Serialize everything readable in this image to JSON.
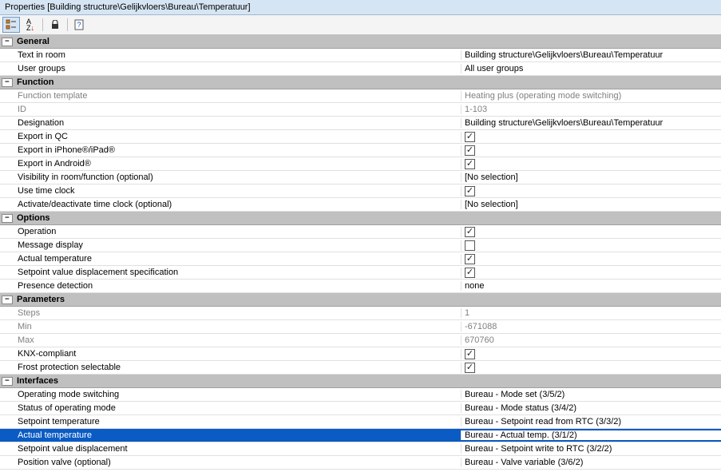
{
  "title": "Properties [Building structure\\Gelijkvloers\\Bureau\\Temperatuur]",
  "toolbar": {
    "categorized_tip": "Categorized",
    "alpha_tip": "Alphabetical",
    "lock_tip": "Lock",
    "help_tip": "Help"
  },
  "sections": {
    "general": {
      "header": "General",
      "rows": [
        {
          "label": "Text in room",
          "value": "Building structure\\Gelijkvloers\\Bureau\\Temperatuur",
          "type": "text"
        },
        {
          "label": "User groups",
          "value": "All user groups",
          "type": "text"
        }
      ]
    },
    "function": {
      "header": "Function",
      "rows": [
        {
          "label": "Function template",
          "value": "Heating plus (operating mode switching)",
          "type": "text",
          "disabled": true
        },
        {
          "label": "ID",
          "value": "1-103",
          "type": "text",
          "disabled": true
        },
        {
          "label": "Designation",
          "value": "Building structure\\Gelijkvloers\\Bureau\\Temperatuur",
          "type": "text"
        },
        {
          "label": "Export in QC",
          "value": true,
          "type": "check"
        },
        {
          "label": "Export in iPhone®/iPad®",
          "value": true,
          "type": "check"
        },
        {
          "label": "Export in Android®",
          "value": true,
          "type": "check"
        },
        {
          "label": "Visibility in room/function (optional)",
          "value": "[No selection]",
          "type": "text"
        },
        {
          "label": "Use time clock",
          "value": true,
          "type": "check"
        },
        {
          "label": "Activate/deactivate time clock (optional)",
          "value": "[No selection]",
          "type": "text"
        }
      ]
    },
    "options": {
      "header": "Options",
      "rows": [
        {
          "label": "Operation",
          "value": true,
          "type": "check"
        },
        {
          "label": "Message display",
          "value": false,
          "type": "check"
        },
        {
          "label": "Actual temperature",
          "value": true,
          "type": "check"
        },
        {
          "label": "Setpoint value displacement specification",
          "value": true,
          "type": "check"
        },
        {
          "label": "Presence detection",
          "value": "none",
          "type": "text"
        }
      ]
    },
    "parameters": {
      "header": "Parameters",
      "rows": [
        {
          "label": "Steps",
          "value": "1",
          "type": "text",
          "disabled": true
        },
        {
          "label": "Min",
          "value": "-671088",
          "type": "text",
          "disabled": true
        },
        {
          "label": "Max",
          "value": "670760",
          "type": "text",
          "disabled": true
        },
        {
          "label": "KNX-compliant",
          "value": true,
          "type": "check"
        },
        {
          "label": "Frost protection selectable",
          "value": true,
          "type": "check"
        }
      ]
    },
    "interfaces": {
      "header": "Interfaces",
      "rows": [
        {
          "label": "Operating mode switching",
          "value": "Bureau - Mode set (3/5/2)",
          "type": "text"
        },
        {
          "label": "Status of operating mode",
          "value": "Bureau - Mode status (3/4/2)",
          "type": "text"
        },
        {
          "label": "Setpoint temperature",
          "value": "Bureau - Setpoint read from RTC (3/3/2)",
          "type": "text"
        },
        {
          "label": "Actual temperature",
          "value": "Bureau - Actual temp. (3/1/2)",
          "type": "text",
          "selected": true
        },
        {
          "label": "Setpoint value displacement",
          "value": "Bureau - Setpoint write to RTC (3/2/2)",
          "type": "text"
        },
        {
          "label": "Position valve (optional)",
          "value": "Bureau - Valve variable (3/6/2)",
          "type": "text"
        }
      ]
    }
  }
}
